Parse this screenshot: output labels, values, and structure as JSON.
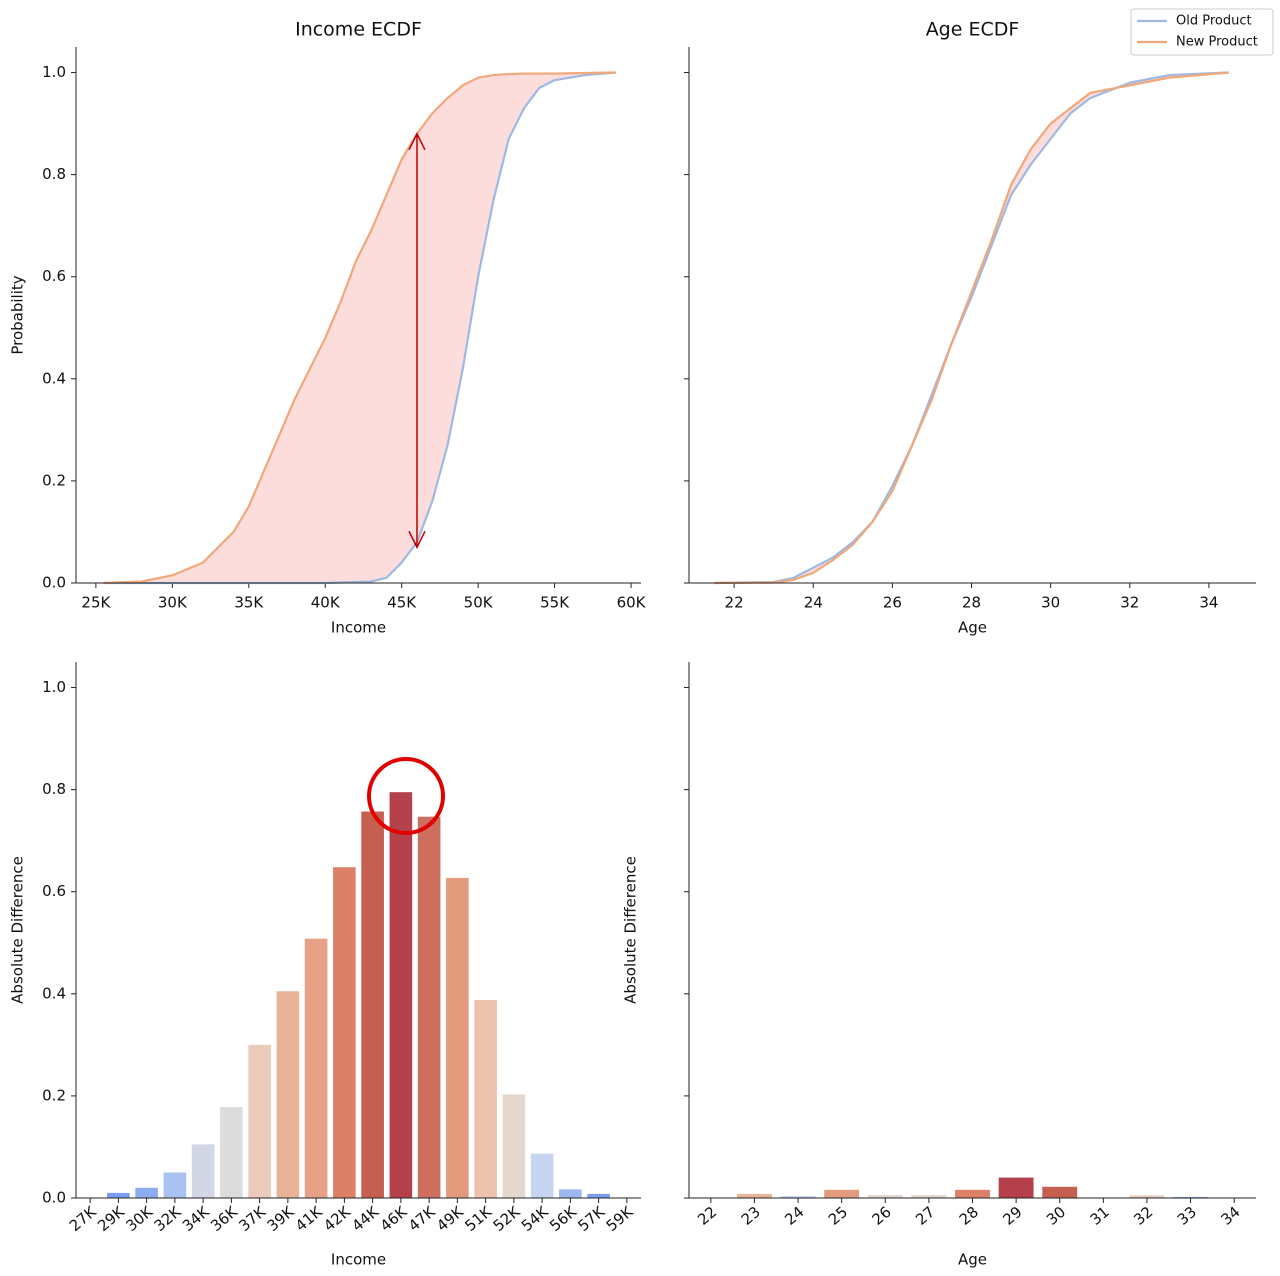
{
  "chart_data": [
    {
      "type": "line",
      "title": "Income ECDF",
      "x_label": "Income",
      "y_label": "Probability",
      "x": [
        25500,
        28000,
        30000,
        32000,
        34000,
        35000,
        36000,
        37000,
        38000,
        39000,
        40000,
        41000,
        42000,
        43000,
        44000,
        45000,
        46000,
        47000,
        48000,
        49000,
        50000,
        51000,
        52000,
        53000,
        54000,
        55000,
        57000,
        59000
      ],
      "series": [
        {
          "name": "Old Product",
          "color": "#9db9e3",
          "values": [
            0,
            0,
            0,
            0,
            0,
            0,
            0,
            0,
            0,
            0,
            0,
            0.001,
            0.002,
            0.003,
            0.01,
            0.04,
            0.08,
            0.16,
            0.27,
            0.42,
            0.6,
            0.75,
            0.87,
            0.93,
            0.97,
            0.985,
            0.995,
            1.0
          ]
        },
        {
          "name": "New Product",
          "color": "#f0a77a",
          "values": [
            0,
            0.003,
            0.015,
            0.04,
            0.1,
            0.15,
            0.22,
            0.29,
            0.36,
            0.42,
            0.48,
            0.55,
            0.63,
            0.69,
            0.76,
            0.83,
            0.88,
            0.92,
            0.95,
            0.975,
            0.99,
            0.995,
            0.997,
            0.998,
            0.998,
            0.998,
            0.999,
            1.0
          ]
        }
      ],
      "fill_color": "#fddcdc",
      "annotation_arrow": {
        "x": 46000,
        "y_start": 0.07,
        "y_end": 0.88,
        "color": "#c00000"
      },
      "xlim": [
        23700,
        60650
      ],
      "xticks": [
        {
          "value": 25000,
          "label": "25K"
        },
        {
          "value": 30000,
          "label": "30K"
        },
        {
          "value": 35000,
          "label": "35K"
        },
        {
          "value": 40000,
          "label": "40K"
        },
        {
          "value": 45000,
          "label": "45K"
        },
        {
          "value": 50000,
          "label": "50K"
        },
        {
          "value": 55000,
          "label": "55K"
        },
        {
          "value": 60000,
          "label": "60K"
        }
      ],
      "ylim": [
        0,
        1.05
      ],
      "yticks": [
        {
          "value": 0,
          "label": "0.0"
        },
        0.2,
        0.4,
        0.6,
        0.8,
        {
          "value": 1,
          "label": "1.0"
        }
      ]
    },
    {
      "type": "line",
      "title": "Age ECDF",
      "x_label": "Age",
      "x": [
        21.5,
        23,
        23.5,
        24,
        24.5,
        25,
        25.5,
        26,
        26.5,
        27,
        27.5,
        28,
        28.5,
        29,
        29.5,
        30,
        30.5,
        31,
        32,
        33,
        34.5
      ],
      "series": [
        {
          "name": "Old Product",
          "color": "#9db9e3",
          "values": [
            0,
            0.002,
            0.01,
            0.03,
            0.05,
            0.08,
            0.12,
            0.19,
            0.27,
            0.37,
            0.47,
            0.56,
            0.66,
            0.76,
            0.82,
            0.87,
            0.92,
            0.95,
            0.98,
            0.995,
            1.0
          ]
        },
        {
          "name": "New Product",
          "color": "#f0a77a",
          "values": [
            0,
            0.001,
            0.006,
            0.02,
            0.045,
            0.075,
            0.12,
            0.18,
            0.27,
            0.36,
            0.47,
            0.57,
            0.67,
            0.78,
            0.85,
            0.9,
            0.93,
            0.96,
            0.975,
            0.99,
            1.0
          ]
        }
      ],
      "fill_color": "#fddcdc",
      "legend": "upper right",
      "xlim": [
        20.86,
        35.19
      ],
      "xticks": [
        22,
        24,
        26,
        28,
        30,
        32,
        34
      ],
      "ylim": [
        0,
        1.05
      ],
      "yticks": [
        0,
        0.2,
        0.4,
        0.6,
        0.8,
        1
      ],
      "ytick_labels": false
    },
    {
      "type": "bar",
      "x_label": "Income",
      "y_label": "Absolute Difference",
      "categories": [
        "27K",
        "29K",
        "30K",
        "32K",
        "34K",
        "36K",
        "37K",
        "39K",
        "41K",
        "42K",
        "44K",
        "46K",
        "47K",
        "49K",
        "51K",
        "52K",
        "54K",
        "56K",
        "57K",
        "59K"
      ],
      "values": [
        0,
        0.01,
        0.02,
        0.05,
        0.105,
        0.178,
        0.3,
        0.405,
        0.508,
        0.648,
        0.757,
        0.795,
        0.747,
        0.627,
        0.388,
        0.203,
        0.087,
        0.017,
        0.008,
        0
      ],
      "colors": [
        "#3b4cc0",
        "#7a9df0",
        "#8badf0",
        "#a9c3f0",
        "#d3d7e5",
        "#dcdcdc",
        "#ebcab9",
        "#e9b398",
        "#e6a187",
        "#dc8168",
        "#c65f4f",
        "#b3404a",
        "#cd6e5f",
        "#e39b7e",
        "#ebc2ae",
        "#e4d7ce",
        "#c5d5ef",
        "#9cb8ee",
        "#7b9df0",
        "#3b4cc0"
      ],
      "ylim": [
        0,
        1.05
      ],
      "yticks": [
        {
          "value": 0,
          "label": "0.0"
        },
        0.2,
        0.4,
        0.6,
        0.8,
        {
          "value": 1,
          "label": "1.0"
        }
      ]
    },
    {
      "type": "bar",
      "x_label": "Age",
      "y_label": "Absolute Difference",
      "categories": [
        "22",
        "23",
        "24",
        "25",
        "26",
        "27",
        "28",
        "29",
        "30",
        "31",
        "32",
        "33",
        "34"
      ],
      "values": [
        0,
        0.008,
        0.003,
        0.016,
        0.006,
        0.006,
        0.016,
        0.04,
        0.022,
        0,
        0.005,
        0.002,
        0
      ],
      "colors": [
        "#3b4cc0",
        "#e9b398",
        "#a9c3f0",
        "#e39b7e",
        "#e4d7ce",
        "#e4d7ce",
        "#dc8168",
        "#b3404a",
        "#c65f4f",
        "#3b4cc0",
        "#ebcab9",
        "#8badf0",
        "#3b4cc0"
      ],
      "ylim": [
        0,
        1.05
      ],
      "yticks": [
        0,
        0.2,
        0.4,
        0.6,
        0.8,
        1
      ],
      "ytick_labels": false
    }
  ]
}
